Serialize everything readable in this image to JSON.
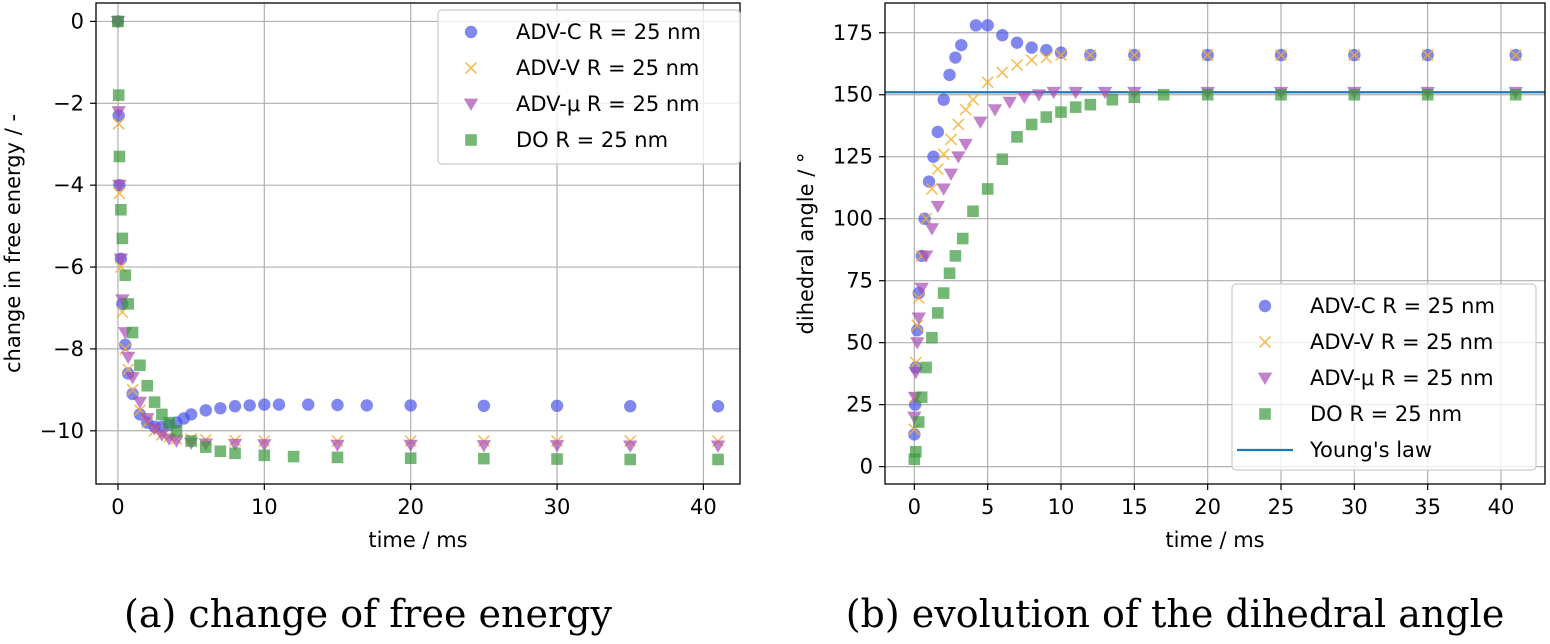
{
  "chart_data": [
    {
      "type": "scatter",
      "caption": "(a) change of free energy",
      "xlabel": "time / ms",
      "ylabel": "change in free energy / -",
      "xlim": [
        -1.5,
        42.5
      ],
      "ylim": [
        -11.3,
        0.45
      ],
      "xticks": [
        0,
        10,
        20,
        30,
        40
      ],
      "xtick_labels": [
        "0",
        "10",
        "20",
        "30",
        "40"
      ],
      "yticks": [
        0,
        -2,
        -4,
        -6,
        -8,
        -10
      ],
      "ytick_labels": [
        "0",
        "−2",
        "−4",
        "−6",
        "−8",
        "−10"
      ],
      "grid": true,
      "legend_position": "upper right",
      "series": [
        {
          "name": "ADV-C R = 25 nm",
          "marker": "circle",
          "color": "#4a56e8",
          "x": [
            0,
            0.05,
            0.1,
            0.2,
            0.3,
            0.5,
            0.7,
            1.0,
            1.5,
            2.0,
            2.5,
            3.0,
            3.5,
            4.0,
            4.5,
            5.0,
            6.0,
            7.0,
            8.0,
            9.0,
            10.0,
            11.0,
            13.0,
            15.0,
            17.0,
            20.0,
            25.0,
            30.0,
            35.0,
            41.0
          ],
          "y": [
            0,
            -2.3,
            -4.0,
            -5.8,
            -6.9,
            -7.9,
            -8.6,
            -9.1,
            -9.6,
            -9.8,
            -9.9,
            -9.9,
            -9.85,
            -9.8,
            -9.7,
            -9.6,
            -9.5,
            -9.45,
            -9.4,
            -9.38,
            -9.36,
            -9.36,
            -9.36,
            -9.37,
            -9.38,
            -9.38,
            -9.39,
            -9.39,
            -9.4,
            -9.4
          ]
        },
        {
          "name": "ADV-V R = 25 nm",
          "marker": "x",
          "color": "#f5ae2c",
          "x": [
            0,
            0.05,
            0.1,
            0.2,
            0.3,
            0.5,
            0.7,
            1.0,
            1.5,
            2.0,
            2.5,
            3.0,
            3.5,
            4.0,
            5.0,
            6.0,
            8.0,
            10.0,
            15.0,
            20.0,
            25.0,
            30.0,
            35.0,
            41.0
          ],
          "y": [
            0,
            -2.5,
            -4.2,
            -6.0,
            -7.1,
            -8.0,
            -8.5,
            -9.0,
            -9.5,
            -9.8,
            -10.0,
            -10.1,
            -10.15,
            -10.2,
            -10.2,
            -10.22,
            -10.24,
            -10.25,
            -10.25,
            -10.25,
            -10.25,
            -10.25,
            -10.25,
            -10.25
          ]
        },
        {
          "name": "ADV-μ R = 25 nm",
          "marker": "triangle-down",
          "color": "#a64db2",
          "x": [
            0,
            0.05,
            0.1,
            0.2,
            0.3,
            0.5,
            0.7,
            1.0,
            1.5,
            2.0,
            2.5,
            3.0,
            3.5,
            4.0,
            5.0,
            6.0,
            8.0,
            10.0,
            15.0,
            20.0,
            25.0,
            30.0,
            35.0,
            41.0
          ],
          "y": [
            0,
            -2.2,
            -4.0,
            -5.8,
            -6.8,
            -7.6,
            -8.2,
            -8.7,
            -9.3,
            -9.7,
            -9.95,
            -10.1,
            -10.2,
            -10.25,
            -10.3,
            -10.32,
            -10.33,
            -10.34,
            -10.35,
            -10.35,
            -10.36,
            -10.36,
            -10.37,
            -10.37
          ]
        },
        {
          "name": "DO R = 25 nm",
          "marker": "square",
          "color": "#3a9a3a",
          "x": [
            0,
            0.05,
            0.1,
            0.2,
            0.3,
            0.5,
            0.7,
            1.0,
            1.5,
            2.0,
            2.5,
            3.0,
            3.5,
            4.0,
            5.0,
            6.0,
            7.0,
            8.0,
            10.0,
            12.0,
            15.0,
            20.0,
            25.0,
            30.0,
            35.0,
            41.0
          ],
          "y": [
            0,
            -1.8,
            -3.3,
            -4.6,
            -5.3,
            -6.2,
            -6.9,
            -7.6,
            -8.4,
            -8.9,
            -9.3,
            -9.6,
            -9.8,
            -10.0,
            -10.25,
            -10.4,
            -10.5,
            -10.55,
            -10.6,
            -10.63,
            -10.65,
            -10.67,
            -10.68,
            -10.69,
            -10.7,
            -10.7
          ]
        }
      ]
    },
    {
      "type": "scatter",
      "caption": "(b) evolution of the dihedral angle",
      "xlabel": "time / ms",
      "ylabel": "dihedral angle / °",
      "xlim": [
        -2.0,
        43.0
      ],
      "ylim": [
        -7,
        187
      ],
      "xticks": [
        0,
        5,
        10,
        15,
        20,
        25,
        30,
        35,
        40
      ],
      "xtick_labels": [
        "0",
        "5",
        "10",
        "15",
        "20",
        "25",
        "30",
        "35",
        "40"
      ],
      "yticks": [
        0,
        25,
        50,
        75,
        100,
        125,
        150,
        175
      ],
      "ytick_labels": [
        "0",
        "25",
        "50",
        "75",
        "100",
        "125",
        "150",
        "175"
      ],
      "grid": true,
      "legend_position": "lower right",
      "reference_line": {
        "name": "Young's law",
        "y": 151,
        "color": "#1f77b4"
      },
      "series": [
        {
          "name": "ADV-C R = 25 nm",
          "marker": "circle",
          "color": "#4a56e8",
          "x": [
            0,
            0.05,
            0.1,
            0.2,
            0.3,
            0.5,
            0.7,
            1.0,
            1.3,
            1.6,
            2.0,
            2.4,
            2.8,
            3.2,
            4.2,
            5.0,
            6.0,
            7.0,
            8.0,
            9.0,
            10.0,
            12.0,
            15.0,
            20.0,
            25.0,
            30.0,
            35.0,
            41.0
          ],
          "y": [
            13,
            25,
            40,
            55,
            70,
            85,
            100,
            115,
            125,
            135,
            148,
            158,
            165,
            170,
            178,
            178,
            174,
            171,
            169,
            168,
            167,
            166,
            166,
            166,
            166,
            166,
            166,
            166
          ]
        },
        {
          "name": "ADV-V R = 25 nm",
          "marker": "x",
          "color": "#f5ae2c",
          "x": [
            0,
            0.05,
            0.1,
            0.2,
            0.3,
            0.5,
            0.8,
            1.2,
            1.6,
            2.0,
            2.5,
            3.0,
            3.5,
            4.0,
            5.0,
            6.0,
            7.0,
            8.0,
            9.0,
            10.0,
            12.0,
            15.0,
            20.0,
            25.0,
            30.0,
            35.0,
            41.0
          ],
          "y": [
            15,
            28,
            42,
            57,
            68,
            85,
            100,
            112,
            120,
            126,
            132,
            138,
            144,
            148,
            155,
            159,
            162,
            164,
            165,
            166,
            166,
            166,
            166,
            166,
            166,
            166,
            166
          ]
        },
        {
          "name": "ADV-μ R = 25 nm",
          "marker": "triangle-down",
          "color": "#a64db2",
          "x": [
            0,
            0.05,
            0.1,
            0.2,
            0.3,
            0.5,
            0.8,
            1.2,
            1.6,
            2.0,
            2.5,
            3.0,
            3.5,
            4.5,
            5.5,
            6.5,
            7.5,
            8.5,
            9.5,
            11.0,
            13.0,
            15.0,
            20.0,
            25.0,
            30.0,
            35.0,
            41.0
          ],
          "y": [
            20,
            28,
            38,
            50,
            60,
            72,
            85,
            96,
            105,
            112,
            118,
            125,
            130,
            139,
            144,
            147,
            149,
            150,
            151,
            151,
            151,
            151,
            151,
            151,
            151,
            151,
            151
          ]
        },
        {
          "name": "DO R = 25 nm",
          "marker": "square",
          "color": "#3a9a3a",
          "x": [
            0,
            0.1,
            0.3,
            0.5,
            0.8,
            1.2,
            1.6,
            2.0,
            2.4,
            2.8,
            3.3,
            4.0,
            5.0,
            6.0,
            7.0,
            8.0,
            9.0,
            10.0,
            11.0,
            12.0,
            13.5,
            15.0,
            17.0,
            20.0,
            25.0,
            30.0,
            35.0,
            41.0
          ],
          "y": [
            3,
            6,
            18,
            28,
            40,
            52,
            62,
            70,
            78,
            85,
            92,
            103,
            112,
            124,
            133,
            138,
            141,
            143,
            145,
            146,
            148,
            149,
            150,
            150,
            150,
            150,
            150,
            150
          ]
        }
      ]
    }
  ]
}
